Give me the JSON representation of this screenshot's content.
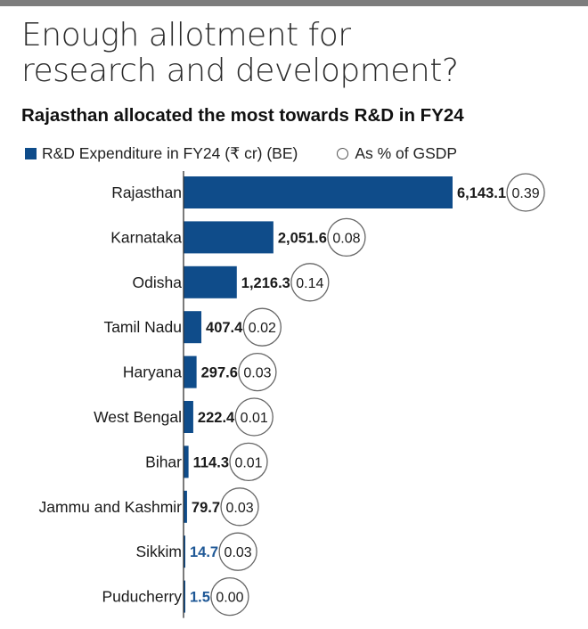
{
  "header": {
    "title_line1": "Enough allotment for",
    "title_line2": "research and development?"
  },
  "chart_data": {
    "type": "bar",
    "orientation": "horizontal",
    "subtitle": "Rajasthan allocated the most towards R&D in FY24",
    "legend": {
      "series_label": "R&D Expenditure in FY24 (₹ cr) (BE)",
      "pct_label": "As % of GSDP",
      "placement": "top-left"
    },
    "categories": [
      "Rajasthan",
      "Karnataka",
      "Odisha",
      "Tamil Nadu",
      "Haryana",
      "West Bengal",
      "Bihar",
      "Jammu and Kashmir",
      "Sikkim",
      "Puducherry"
    ],
    "value_labels": [
      "6,143.1",
      "2,051.6",
      "1,216.3",
      "407.4",
      "297.6",
      "222.4",
      "114.3",
      "79.7",
      "14.7",
      "1.5"
    ],
    "pct_labels": [
      "0.39",
      "0.08",
      "0.14",
      "0.02",
      "0.03",
      "0.01",
      "0.01",
      "0.03",
      "0.03",
      "0.00"
    ],
    "series": [
      {
        "values": [
          6143.1,
          2051.6,
          1216.3,
          407.4,
          297.6,
          222.4,
          114.3,
          79.7,
          14.7,
          1.5
        ]
      },
      {
        "values": [
          0.39,
          0.08,
          0.14,
          0.02,
          0.03,
          0.01,
          0.01,
          0.03,
          0.03,
          0.0
        ]
      }
    ],
    "xlim": [
      0,
      6143.1
    ],
    "grid": false,
    "colors": {
      "bar": "#0f4c8a",
      "small_value_label": "#1f5896",
      "axis": "#333333",
      "circle": "#666666",
      "top_rule": "#7d7d7d"
    }
  }
}
